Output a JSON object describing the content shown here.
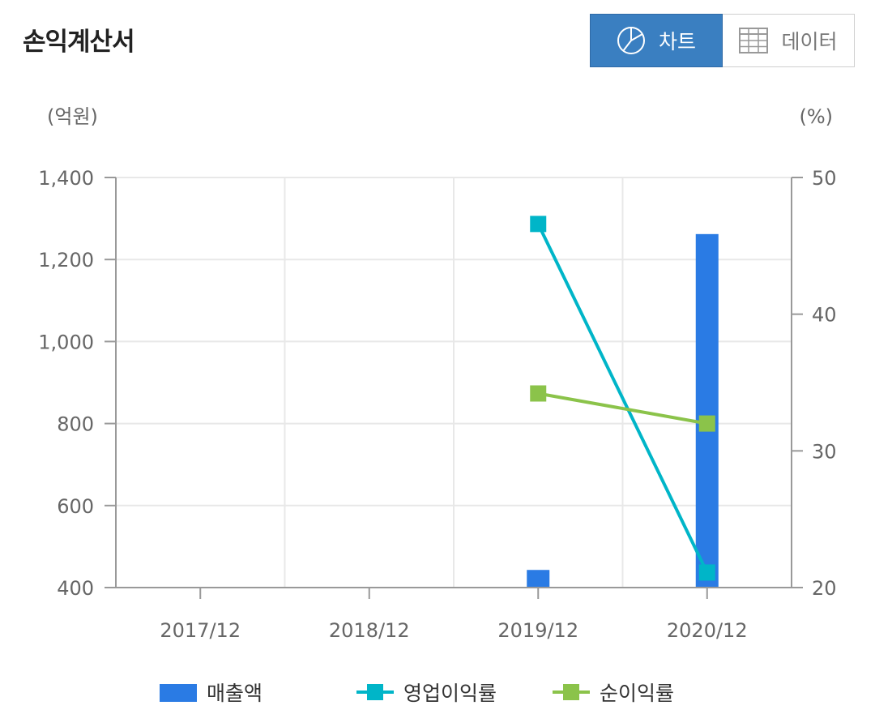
{
  "header": {
    "title": "손익계산서",
    "chart_tab_label": "차트",
    "data_tab_label": "데이터",
    "chart_tab_icon": "pie-chart-icon",
    "data_tab_icon": "table-grid-icon"
  },
  "colors": {
    "bar": "#2a7be4",
    "operating_margin": "#00b5c8",
    "net_margin": "#8bc34a",
    "active_tab": "#3a7fc1"
  },
  "chart_data": {
    "type": "bar",
    "categories": [
      "2017/12",
      "2018/12",
      "2019/12",
      "2020/12"
    ],
    "left_unit": "(억원)",
    "right_unit": "(%)",
    "y_left": {
      "min": 400,
      "max": 1400,
      "ticks": [
        400,
        600,
        800,
        1000,
        1200,
        1400
      ],
      "tick_labels": [
        "400",
        "600",
        "800",
        "1,000",
        "1,200",
        "1,400"
      ]
    },
    "y_right": {
      "min": 20,
      "max": 50,
      "ticks": [
        20,
        30,
        40,
        50
      ],
      "tick_labels": [
        "20",
        "30",
        "40",
        "50"
      ]
    },
    "grid": true,
    "legend_position": "bottom",
    "series": [
      {
        "name": "매출액",
        "type": "bar",
        "axis": "left",
        "values": [
          null,
          null,
          443,
          1262
        ]
      },
      {
        "name": "영업이익률",
        "type": "line",
        "axis": "right",
        "values": [
          null,
          null,
          46.6,
          21.1
        ]
      },
      {
        "name": "순이익률",
        "type": "line",
        "axis": "right",
        "values": [
          null,
          null,
          34.2,
          32.0
        ]
      }
    ]
  }
}
